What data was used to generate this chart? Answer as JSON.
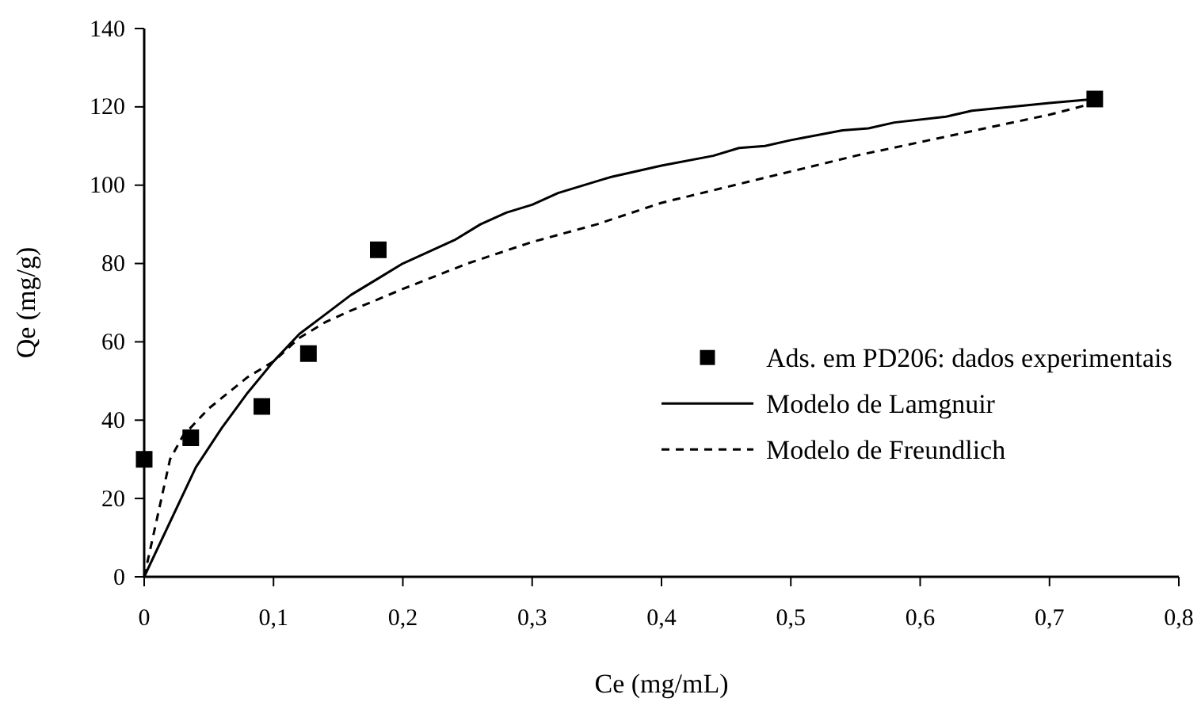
{
  "chart_data": {
    "type": "scatter",
    "xlabel": "Ce (mg/mL)",
    "ylabel": "Qe (mg/g)",
    "xlim": [
      0,
      0.8
    ],
    "xticks": [
      {
        "value": 0,
        "label": "0"
      },
      {
        "value": 0.1,
        "label": "0,1"
      },
      {
        "value": 0.2,
        "label": "0,2"
      },
      {
        "value": 0.3,
        "label": "0,3"
      },
      {
        "value": 0.4,
        "label": "0,4"
      },
      {
        "value": 0.5,
        "label": "0,5"
      },
      {
        "value": 0.6,
        "label": "0,6"
      },
      {
        "value": 0.7,
        "label": "0,7"
      },
      {
        "value": 0.8,
        "label": "0,8"
      }
    ],
    "ylim": [
      0,
      140
    ],
    "yticks": [
      0,
      20,
      40,
      60,
      80,
      100,
      120,
      140
    ],
    "grid": false,
    "legend": "right",
    "series": [
      {
        "name": "Ads. em PD206: dados experimentais",
        "marker": "square",
        "color": "#000000",
        "x": [
          0,
          0.036,
          0.091,
          0.127,
          0.181,
          0.735
        ],
        "values": [
          30,
          35.5,
          43.5,
          57,
          83.5,
          122
        ]
      },
      {
        "name": "Modelo de Lamgnuir",
        "type": "line",
        "line_style": "solid",
        "marker": "none",
        "color": "#000000",
        "x": [
          0,
          0.04,
          0.06,
          0.08,
          0.1,
          0.12,
          0.14,
          0.16,
          0.18,
          0.2,
          0.24,
          0.26,
          0.28,
          0.3,
          0.32,
          0.36,
          0.4,
          0.44,
          0.46,
          0.48,
          0.5,
          0.54,
          0.56,
          0.58,
          0.62,
          0.64,
          0.7,
          0.735
        ],
        "values": [
          0,
          28,
          38,
          47,
          55,
          62,
          67,
          72,
          76,
          80,
          86,
          90,
          93,
          95,
          98,
          102,
          105,
          107.5,
          109.5,
          110,
          111.5,
          114,
          114.5,
          116,
          117.5,
          119,
          121,
          122
        ]
      },
      {
        "name": "Modelo de Freundlich",
        "type": "line",
        "line_style": "dashed",
        "marker": "none",
        "color": "#000000",
        "x": [
          0,
          0.01,
          0.02,
          0.03,
          0.05,
          0.08,
          0.1,
          0.12,
          0.14,
          0.16,
          0.2,
          0.25,
          0.3,
          0.35,
          0.4,
          0.45,
          0.5,
          0.55,
          0.6,
          0.65,
          0.7,
          0.735
        ],
        "values": [
          0,
          15,
          30,
          36,
          43,
          51,
          55,
          61,
          65,
          68,
          73.5,
          80,
          85.5,
          90,
          95.5,
          99.5,
          103.5,
          107.5,
          111,
          114.5,
          118,
          121
        ]
      }
    ]
  }
}
